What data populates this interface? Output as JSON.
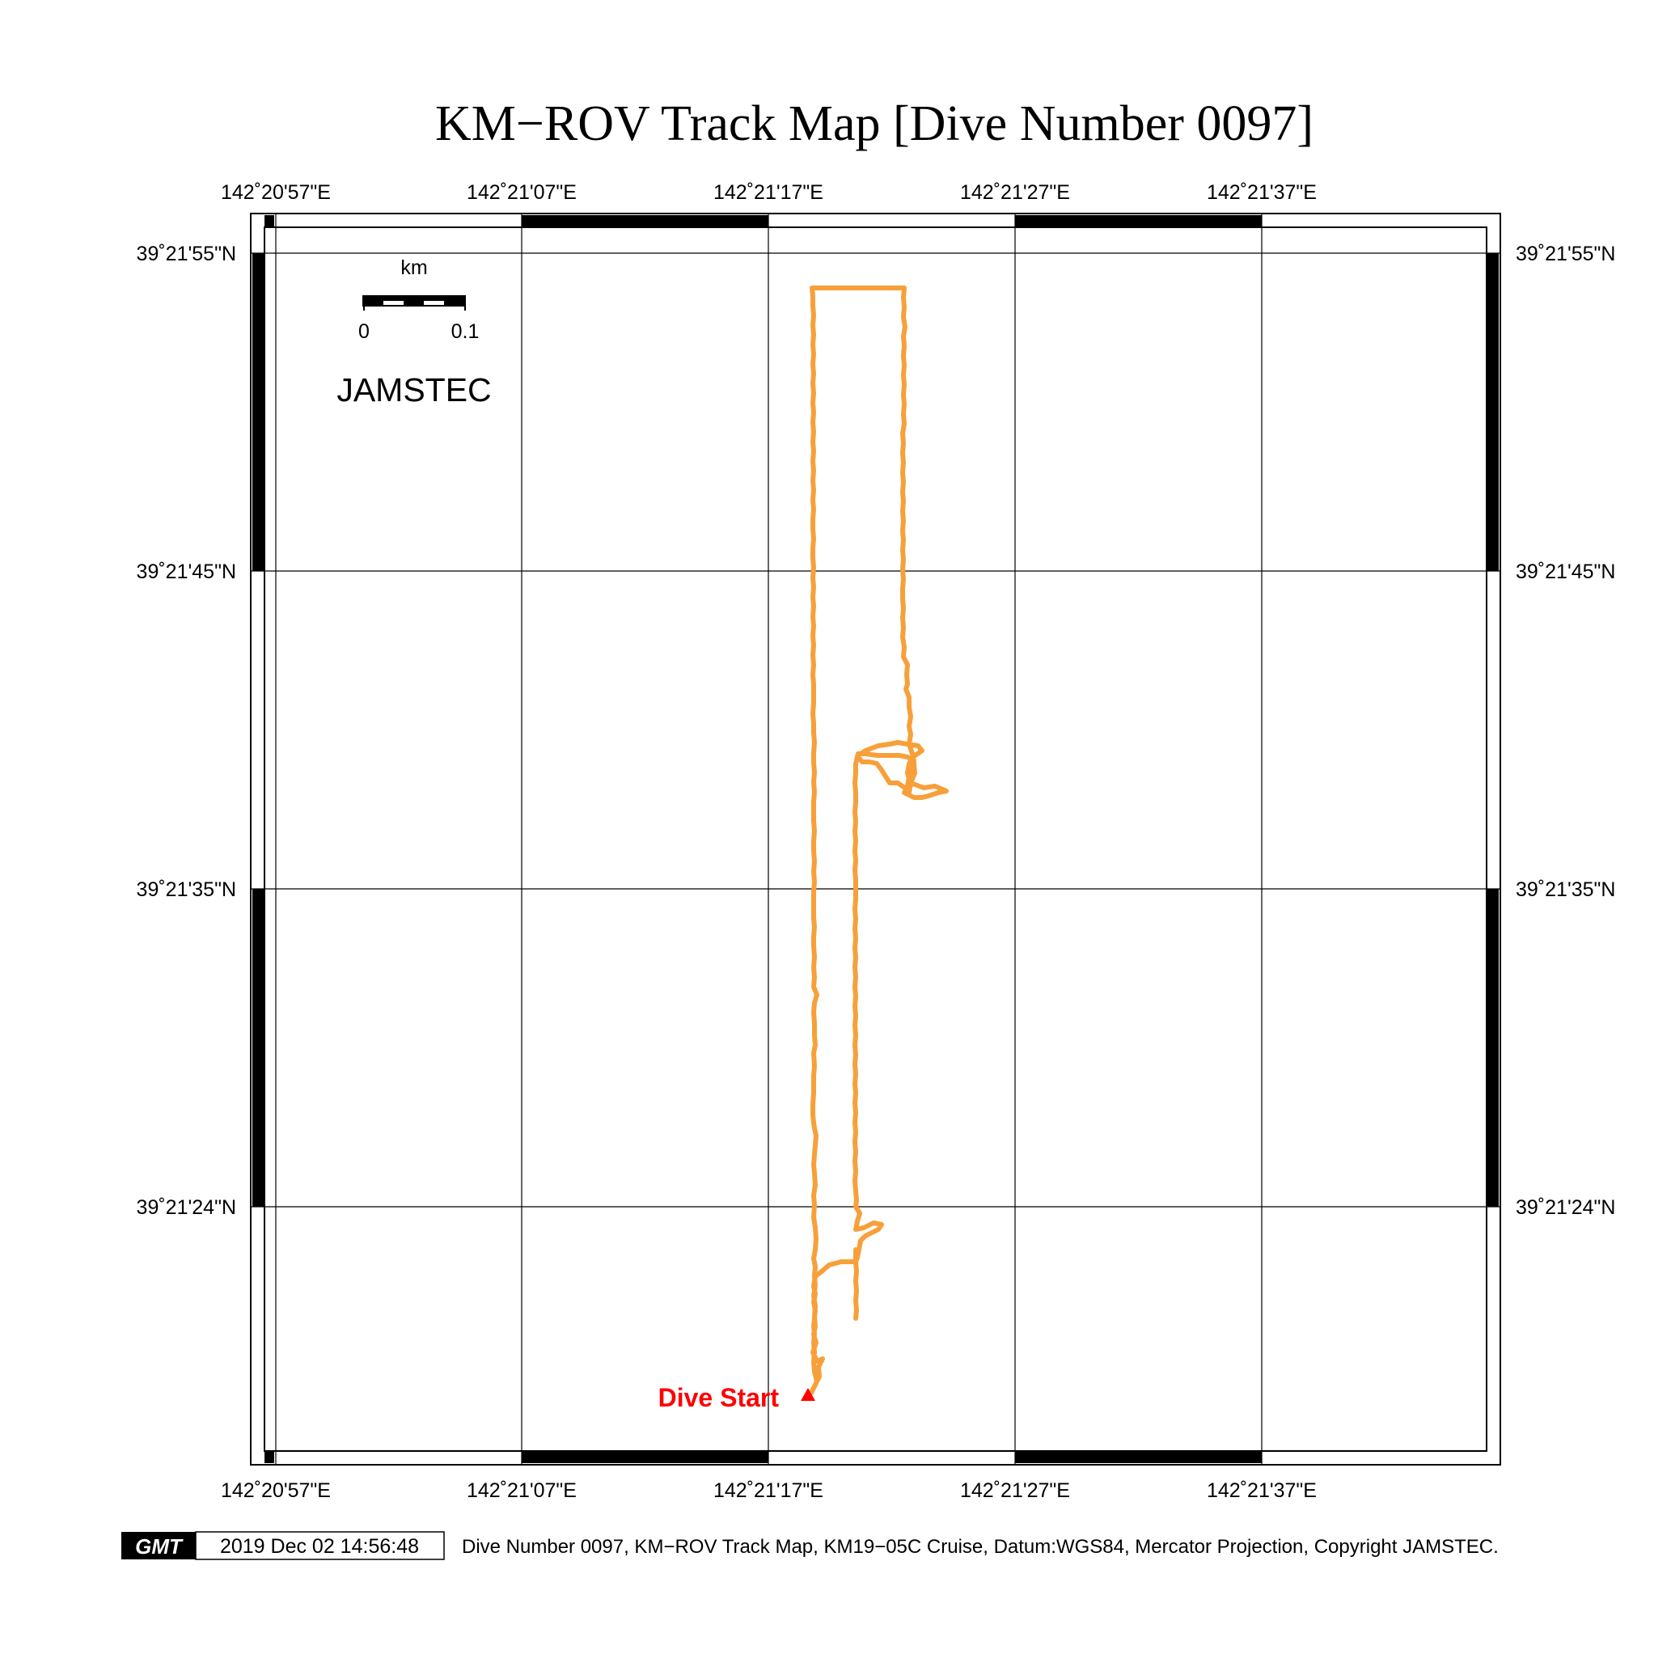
{
  "title": "KM−ROV Track Map [Dive Number 0097]",
  "lon_labels": [
    "142˚20'57\"E",
    "142˚21'07\"E",
    "142˚21'17\"E",
    "142˚21'27\"E",
    "142˚21'37\"E"
  ],
  "lat_labels": [
    "39˚21'55\"N",
    "39˚21'45\"N",
    "39˚21'35\"N",
    "39˚21'24\"N"
  ],
  "scale_bar": {
    "unit": "km",
    "start": "0",
    "end": "0.1"
  },
  "brand": "JAMSTEC",
  "dive_start_label": "Dive Start",
  "colors": {
    "track": "#f7a03a",
    "start_marker": "#ff0000",
    "frame": "#000000"
  },
  "footer": {
    "logo": "GMT",
    "timestamp": "2019 Dec 02 14:56:48",
    "caption": "Dive Number 0097, KM−ROV Track Map, KM19−05C Cruise, Datum:WGS84, Mercator Projection, Copyright JAMSTEC."
  }
}
